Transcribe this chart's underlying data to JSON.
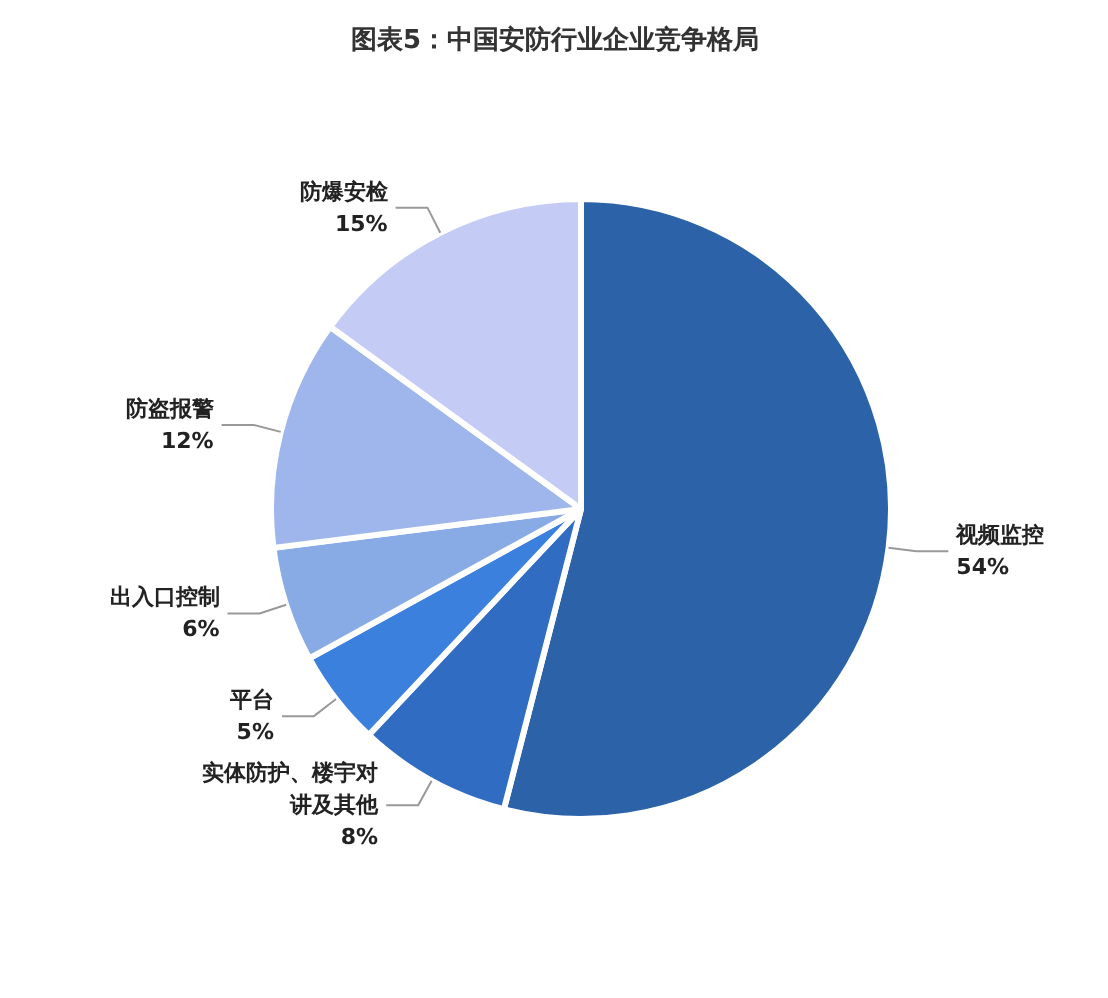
{
  "chart_data": {
    "type": "pie",
    "title": "图表5：中国安防行业企业竞争格局",
    "categories": [
      "视频监控",
      "实体防护、楼宇对讲及其他",
      "平台",
      "出入口控制",
      "防盗报警",
      "防爆安检"
    ],
    "values": [
      54,
      8,
      5,
      6,
      12,
      15
    ],
    "value_labels": [
      "54%",
      "8%",
      "5%",
      "6%",
      "12%",
      "15%"
    ],
    "colors": [
      "#2b62a8",
      "#2f6cc2",
      "#3a80dc",
      "#88abe6",
      "#9fb6ec",
      "#c4cbf4"
    ]
  }
}
